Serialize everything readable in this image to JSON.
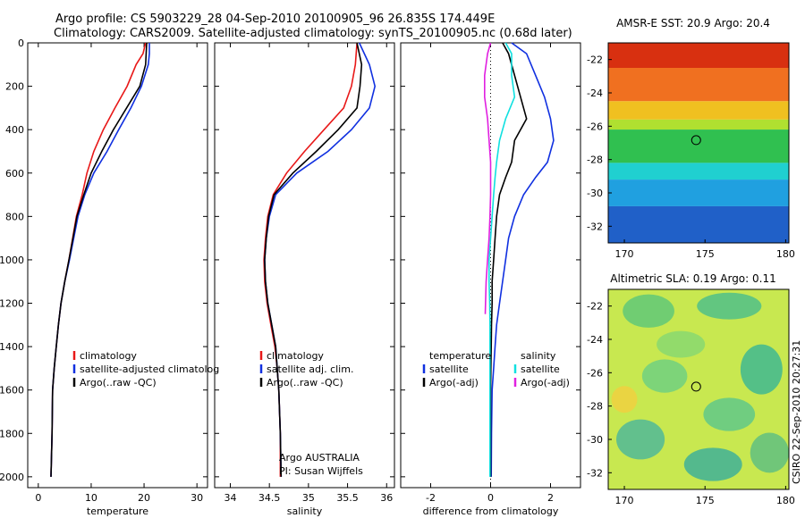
{
  "header": {
    "line1": "Argo profile: CS 5903229_28 04-Sep-2010 20100905_96 26.835S 174.449E",
    "line2": "Climatology: CARS2009. Satellite-adjusted climatology: synTS_20100905.nc (0.68d later)"
  },
  "side_label": "CSIRO 22-Sep-2010 20:27:31",
  "colors": {
    "climatology": "#e81818",
    "satellite": "#1030e0",
    "argo": "#000000",
    "sat_salinity": "#10e0e0",
    "argo_salinity": "#e020e0"
  },
  "chart_data": [
    {
      "type": "line",
      "name": "temperature-panel",
      "xlabel": "temperature",
      "ylabel": "",
      "xlim": [
        -2,
        32
      ],
      "ylim": [
        2050,
        0
      ],
      "xticks": [
        "0",
        "10",
        "20",
        "30"
      ],
      "xtick_values": [
        0,
        10,
        20,
        30
      ],
      "yticks": [
        "0",
        "200",
        "400",
        "600",
        "800",
        "1000",
        "1200",
        "1400",
        "1600",
        "1800",
        "2000"
      ],
      "ytick_values": [
        0,
        200,
        400,
        600,
        800,
        1000,
        1200,
        1400,
        1600,
        1800,
        2000
      ],
      "legend": [
        "climatology",
        "satellite-adjusted climatolog",
        "Argo(..raw -QC)"
      ],
      "annotation": [
        "",
        ""
      ],
      "series": [
        {
          "name": "climatology",
          "color": "#e81818",
          "x": [
            20.3,
            19.8,
            18.5,
            16.8,
            14.5,
            12.3,
            10.5,
            9.2,
            8.3,
            7.2,
            5.8,
            5.0,
            4.3,
            3.8,
            3.4,
            3.0,
            2.7,
            2.6,
            2.5,
            2.4
          ],
          "y": [
            0,
            50,
            100,
            200,
            300,
            400,
            500,
            600,
            700,
            800,
            1000,
            1100,
            1200,
            1300,
            1400,
            1500,
            1600,
            1800,
            1900,
            2000
          ]
        },
        {
          "name": "satellite-adjusted climatology",
          "color": "#1030e0",
          "x": [
            21.0,
            21.0,
            20.8,
            19.5,
            17.5,
            15.2,
            13.0,
            10.5,
            8.8,
            7.5,
            5.9,
            5.0,
            4.3,
            3.8,
            3.4,
            3.0,
            2.7,
            2.6,
            2.5,
            2.4
          ],
          "y": [
            0,
            50,
            100,
            200,
            300,
            400,
            500,
            600,
            700,
            800,
            1000,
            1100,
            1200,
            1300,
            1400,
            1500,
            1600,
            1800,
            1900,
            2000
          ]
        },
        {
          "name": "Argo(..raw -QC)",
          "color": "#000000",
          "x": [
            20.5,
            20.4,
            20.3,
            19.2,
            16.7,
            14.2,
            12.0,
            10.0,
            8.6,
            7.3,
            5.8,
            5.0,
            4.3,
            3.8,
            3.4,
            3.0,
            2.7,
            2.6,
            2.5,
            2.4
          ],
          "y": [
            0,
            50,
            100,
            200,
            300,
            400,
            500,
            600,
            700,
            800,
            1000,
            1100,
            1200,
            1300,
            1400,
            1500,
            1600,
            1800,
            1900,
            2000
          ]
        }
      ]
    },
    {
      "type": "line",
      "name": "salinity-panel",
      "xlabel": "salinity",
      "ylabel": "",
      "xlim": [
        33.8,
        36.1
      ],
      "ylim": [
        2050,
        0
      ],
      "xticks": [
        "34",
        "34.5",
        "35",
        "35.5",
        "36"
      ],
      "xtick_values": [
        34,
        34.5,
        35,
        35.5,
        36
      ],
      "yticks": [],
      "ytick_values": [],
      "legend": [
        "climatology",
        "satellite adj. clim.",
        "Argo(..raw -QC)"
      ],
      "annotation": [
        "Argo AUSTRALIA",
        "PI: Susan Wijffels"
      ],
      "series": [
        {
          "name": "climatology",
          "color": "#e81818",
          "x": [
            35.62,
            35.6,
            35.55,
            35.45,
            35.2,
            34.95,
            34.72,
            34.55,
            34.48,
            34.45,
            34.43,
            34.44,
            34.47,
            34.52,
            34.57,
            34.6,
            34.62,
            34.64,
            34.64
          ],
          "y": [
            0,
            100,
            200,
            300,
            400,
            500,
            600,
            700,
            800,
            900,
            1000,
            1100,
            1200,
            1300,
            1400,
            1500,
            1600,
            1800,
            2000
          ]
        },
        {
          "name": "satellite adj. clim.",
          "color": "#1030e0",
          "x": [
            35.65,
            35.78,
            35.85,
            35.78,
            35.55,
            35.25,
            34.85,
            34.58,
            34.5,
            34.46,
            34.44,
            34.45,
            34.48,
            34.53,
            34.58,
            34.6,
            34.62,
            34.64,
            34.65
          ],
          "y": [
            0,
            100,
            200,
            300,
            400,
            500,
            600,
            700,
            800,
            900,
            1000,
            1100,
            1200,
            1300,
            1400,
            1500,
            1600,
            1800,
            2000
          ]
        },
        {
          "name": "Argo(..raw -QC)",
          "color": "#000000",
          "x": [
            35.62,
            35.68,
            35.66,
            35.62,
            35.38,
            35.1,
            34.8,
            34.56,
            34.49,
            34.46,
            34.44,
            34.45,
            34.48,
            34.53,
            34.58,
            34.6,
            34.62,
            34.64,
            34.65
          ],
          "y": [
            0,
            100,
            200,
            300,
            400,
            500,
            600,
            700,
            800,
            900,
            1000,
            1100,
            1200,
            1300,
            1400,
            1500,
            1600,
            1800,
            2000
          ]
        }
      ]
    },
    {
      "type": "line",
      "name": "difference-panel",
      "xlabel": "difference from climatology",
      "ylabel": "",
      "xlim": [
        -3,
        3
      ],
      "ylim": [
        2050,
        0
      ],
      "xticks": [
        "-2",
        "0",
        "2"
      ],
      "xtick_values": [
        -2,
        0,
        2
      ],
      "yticks": [],
      "ytick_values": [],
      "legend_temperature": [
        "temperature",
        "satellite",
        "Argo(-adj)"
      ],
      "legend_salinity": [
        "salinity",
        "satellite",
        "Argo(-adj)"
      ],
      "annotation": [
        "",
        ""
      ],
      "series": [
        {
          "name": "temperature satellite",
          "color": "#1030e0",
          "x": [
            0.7,
            1.2,
            1.5,
            1.8,
            2.0,
            2.1,
            1.9,
            1.5,
            1.1,
            0.8,
            0.6,
            0.5,
            0.4,
            0.3,
            0.2,
            0.15,
            0.1,
            0.05,
            0.03,
            0.02
          ],
          "y": [
            0,
            50,
            150,
            250,
            350,
            450,
            550,
            620,
            700,
            800,
            900,
            1000,
            1100,
            1200,
            1300,
            1400,
            1500,
            1600,
            1800,
            2000
          ]
        },
        {
          "name": "temperature Argo(-adj)",
          "color": "#000000",
          "x": [
            0.4,
            0.6,
            0.8,
            1.0,
            1.2,
            0.8,
            0.7,
            0.5,
            0.3,
            0.2,
            0.15,
            0.1,
            0.05,
            0.05,
            0.03,
            0.02,
            0.01,
            0.0,
            0.0,
            0.0
          ],
          "y": [
            0,
            50,
            150,
            250,
            350,
            450,
            550,
            620,
            700,
            800,
            900,
            1000,
            1100,
            1200,
            1300,
            1400,
            1500,
            1600,
            1800,
            2000
          ]
        },
        {
          "name": "salinity satellite",
          "color": "#10e0e0",
          "x": [
            0.5,
            0.7,
            0.7,
            0.8,
            0.5,
            0.3,
            0.2,
            0.15,
            0.1,
            0.05,
            0.0,
            -0.05,
            -0.05,
            -0.03,
            -0.02,
            -0.02,
            -0.02,
            -0.02,
            -0.02,
            -0.02
          ],
          "y": [
            0,
            50,
            150,
            250,
            350,
            450,
            550,
            620,
            700,
            800,
            900,
            1000,
            1100,
            1200,
            1300,
            1400,
            1500,
            1600,
            1800,
            2000
          ]
        },
        {
          "name": "salinity Argo(-adj)",
          "color": "#e020e0",
          "x": [
            0.0,
            -0.1,
            -0.2,
            -0.2,
            -0.1,
            -0.05,
            0.0,
            0.0,
            0.0,
            -0.02,
            -0.05,
            -0.1,
            -0.15,
            -0.18
          ],
          "y": [
            0,
            50,
            150,
            250,
            350,
            450,
            550,
            620,
            700,
            800,
            900,
            1000,
            1100,
            1250
          ]
        }
      ]
    },
    {
      "type": "heatmap",
      "name": "sst-map",
      "title": "AMSR-E SST: 20.9 Argo: 20.4",
      "xlim": [
        169,
        180.2
      ],
      "ylim": [
        -33,
        -21
      ],
      "xticks": [
        "170",
        "175",
        "180"
      ],
      "xtick_values": [
        170,
        175,
        180
      ],
      "yticks": [
        "-22",
        "-24",
        "-26",
        "-28",
        "-30",
        "-32"
      ],
      "ytick_values": [
        -22,
        -24,
        -26,
        -28,
        -30,
        -32
      ],
      "marker": [
        174.449,
        -26.835
      ],
      "color_bands": [
        {
          "from": -21,
          "to": -22.5,
          "color": "#d83010"
        },
        {
          "from": -22.5,
          "to": -24.5,
          "color": "#f07020"
        },
        {
          "from": -24.5,
          "to": -25.6,
          "color": "#f0c020"
        },
        {
          "from": -25.6,
          "to": -26.2,
          "color": "#b0e030"
        },
        {
          "from": -26.2,
          "to": -28.2,
          "color": "#30c050"
        },
        {
          "from": -28.2,
          "to": -29.2,
          "color": "#20d0d0"
        },
        {
          "from": -29.2,
          "to": -30.8,
          "color": "#20a0e0"
        },
        {
          "from": -30.8,
          "to": -33,
          "color": "#2060c8"
        }
      ]
    },
    {
      "type": "heatmap",
      "name": "sla-map",
      "title": "Altimetric SLA: 0.19 Argo: 0.11",
      "xlim": [
        169,
        180.2
      ],
      "ylim": [
        -33,
        -21
      ],
      "xticks": [
        "170",
        "175",
        "180"
      ],
      "xtick_values": [
        170,
        175,
        180
      ],
      "yticks": [
        "-22",
        "-24",
        "-26",
        "-28",
        "-30",
        "-32"
      ],
      "ytick_values": [
        -22,
        -24,
        -26,
        -28,
        -30,
        -32
      ],
      "marker": [
        174.449,
        -26.835
      ],
      "base_color": "#c8e850",
      "blobs": [
        {
          "cx": 171.5,
          "cy": -22.3,
          "rx": 1.6,
          "ry": 1.0,
          "color": "#60c878"
        },
        {
          "cx": 176.5,
          "cy": -22.0,
          "rx": 2.0,
          "ry": 0.8,
          "color": "#50c088"
        },
        {
          "cx": 173.5,
          "cy": -24.3,
          "rx": 1.5,
          "ry": 0.8,
          "color": "#88d870"
        },
        {
          "cx": 178.5,
          "cy": -25.8,
          "rx": 1.3,
          "ry": 1.5,
          "color": "#40b890"
        },
        {
          "cx": 172.5,
          "cy": -26.2,
          "rx": 1.4,
          "ry": 1.0,
          "color": "#70d080"
        },
        {
          "cx": 170.0,
          "cy": -27.6,
          "rx": 0.8,
          "ry": 0.8,
          "color": "#f0d040"
        },
        {
          "cx": 176.5,
          "cy": -28.5,
          "rx": 1.6,
          "ry": 1.0,
          "color": "#60c888"
        },
        {
          "cx": 171.0,
          "cy": -30.0,
          "rx": 1.5,
          "ry": 1.2,
          "color": "#50b898"
        },
        {
          "cx": 175.5,
          "cy": -31.5,
          "rx": 1.8,
          "ry": 1.0,
          "color": "#40b098"
        },
        {
          "cx": 179.0,
          "cy": -30.8,
          "rx": 1.2,
          "ry": 1.2,
          "color": "#60c080"
        }
      ]
    }
  ]
}
